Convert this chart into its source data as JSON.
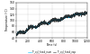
{
  "title": "",
  "xlabel": "Time (s)",
  "ylabel": "Temperature (°C)",
  "ylim": [
    40,
    160
  ],
  "xlim": [
    0,
    1200
  ],
  "yticks": [
    40,
    60,
    80,
    100,
    120,
    140,
    160
  ],
  "xticks": [
    0,
    200,
    400,
    600,
    800,
    1000,
    1200
  ],
  "line1_color": "#222222",
  "line2_color": "#00bfff",
  "line1_label": "T°_cyl_head_exp",
  "line2_label": "T°_cyl_head_num",
  "line_width": 0.4,
  "grid_color": "#cccccc",
  "background_color": "#ffffff",
  "seed": 42,
  "noise_scale": 3.0
}
